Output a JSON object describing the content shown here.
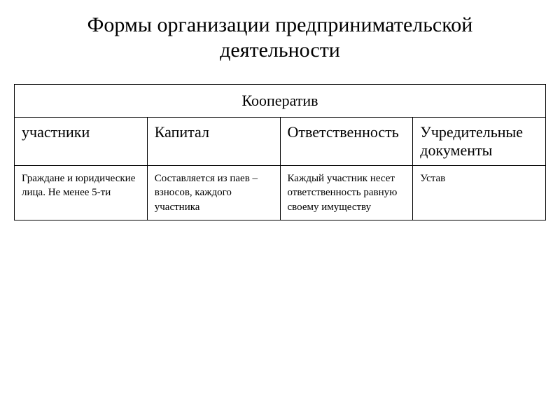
{
  "title": "Формы организации предпринимательской деятельности",
  "table": {
    "header": "Кооператив",
    "columns": [
      "участники",
      "Капитал",
      "Ответственность",
      "Учредительные документы"
    ],
    "row": [
      "Граждане и юридические лица. Не менее 5-ти",
      "Составляется из паев – взносов, каждого участника",
      "Каждый участник несет ответственность равную своему имуществу",
      "Устав"
    ],
    "column_widths": [
      "25%",
      "25%",
      "25%",
      "25%"
    ],
    "border_color": "#000000",
    "background_color": "#ffffff",
    "title_fontsize": 30,
    "subheader_fontsize": 22,
    "data_fontsize": 15
  }
}
